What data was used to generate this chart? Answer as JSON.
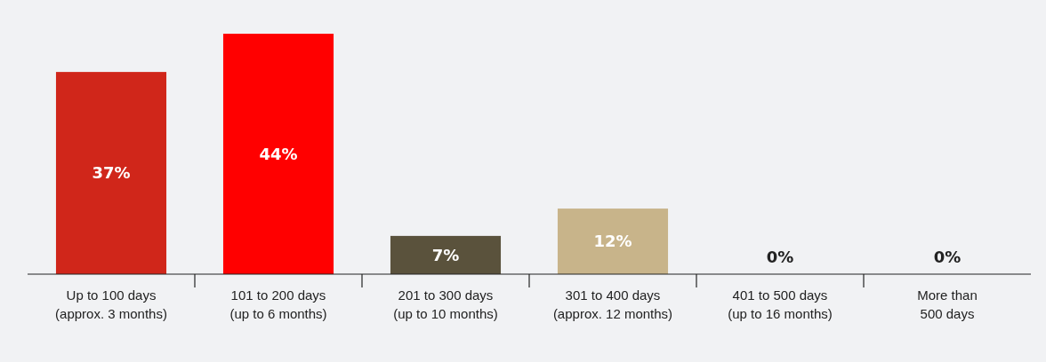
{
  "chart_data": {
    "type": "bar",
    "categories": [
      "Up to 100 days (approx. 3 months)",
      "101 to 200 days (up to 6 months)",
      "201 to 300 days (up to 10 months)",
      "301 to 400 days (approx. 12 months)",
      "401 to 500 days (up to 16 months)",
      "More than 500 days"
    ],
    "values": [
      37,
      44,
      7,
      12,
      0,
      0
    ],
    "value_labels": [
      "37%",
      "44%",
      "7%",
      "12%",
      "0%",
      "0%"
    ],
    "colors": [
      "#d0261a",
      "#ff0000",
      "#5a523c",
      "#c8b48a",
      "#c8b48a",
      "#c8b48a"
    ]
  }
}
